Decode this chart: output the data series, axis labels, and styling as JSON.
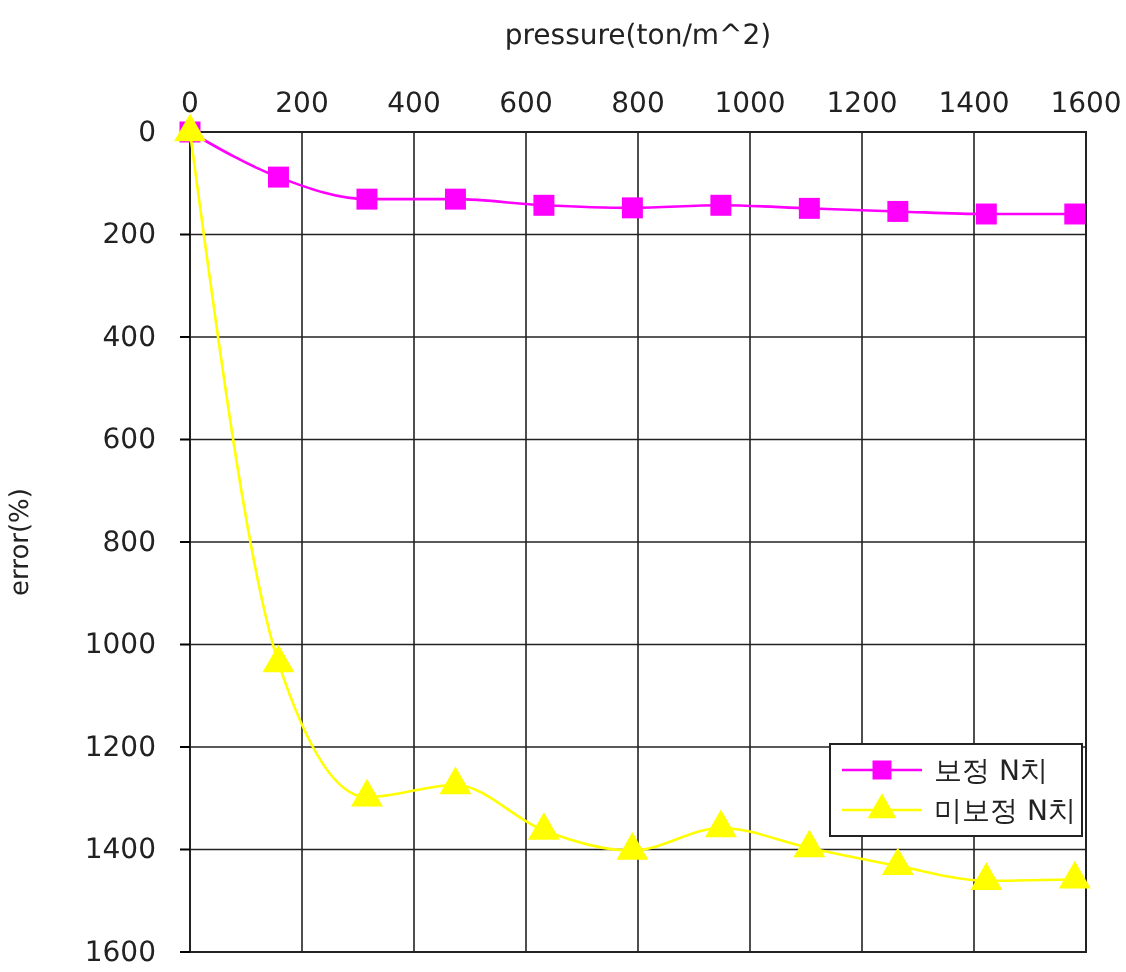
{
  "chart_data": {
    "type": "line",
    "xlabel": "pressure(ton/m^2)",
    "ylabel": "error(%)",
    "x": [
      0,
      158,
      316,
      474,
      632,
      790,
      948,
      1106,
      1264,
      1422,
      1580
    ],
    "xlim": [
      0,
      1600
    ],
    "xticks": [
      0,
      200,
      400,
      600,
      800,
      1000,
      1200,
      1400,
      1600
    ],
    "ylim": [
      1600,
      0
    ],
    "yticks": [
      0,
      200,
      400,
      600,
      800,
      1000,
      1200,
      1400,
      1600
    ],
    "grid": true,
    "legend": "bottom right",
    "series": [
      {
        "name": "보정 N치",
        "color": "#ff00ff",
        "marker": "square",
        "values": [
          0,
          88,
          131,
          131,
          143,
          148,
          143,
          149,
          155,
          160,
          160
        ]
      },
      {
        "name": "미보정 N치",
        "color": "#ffff00",
        "marker": "triangle",
        "values": [
          0,
          1036,
          1298,
          1274,
          1363,
          1402,
          1358,
          1397,
          1432,
          1461,
          1458
        ]
      }
    ]
  }
}
